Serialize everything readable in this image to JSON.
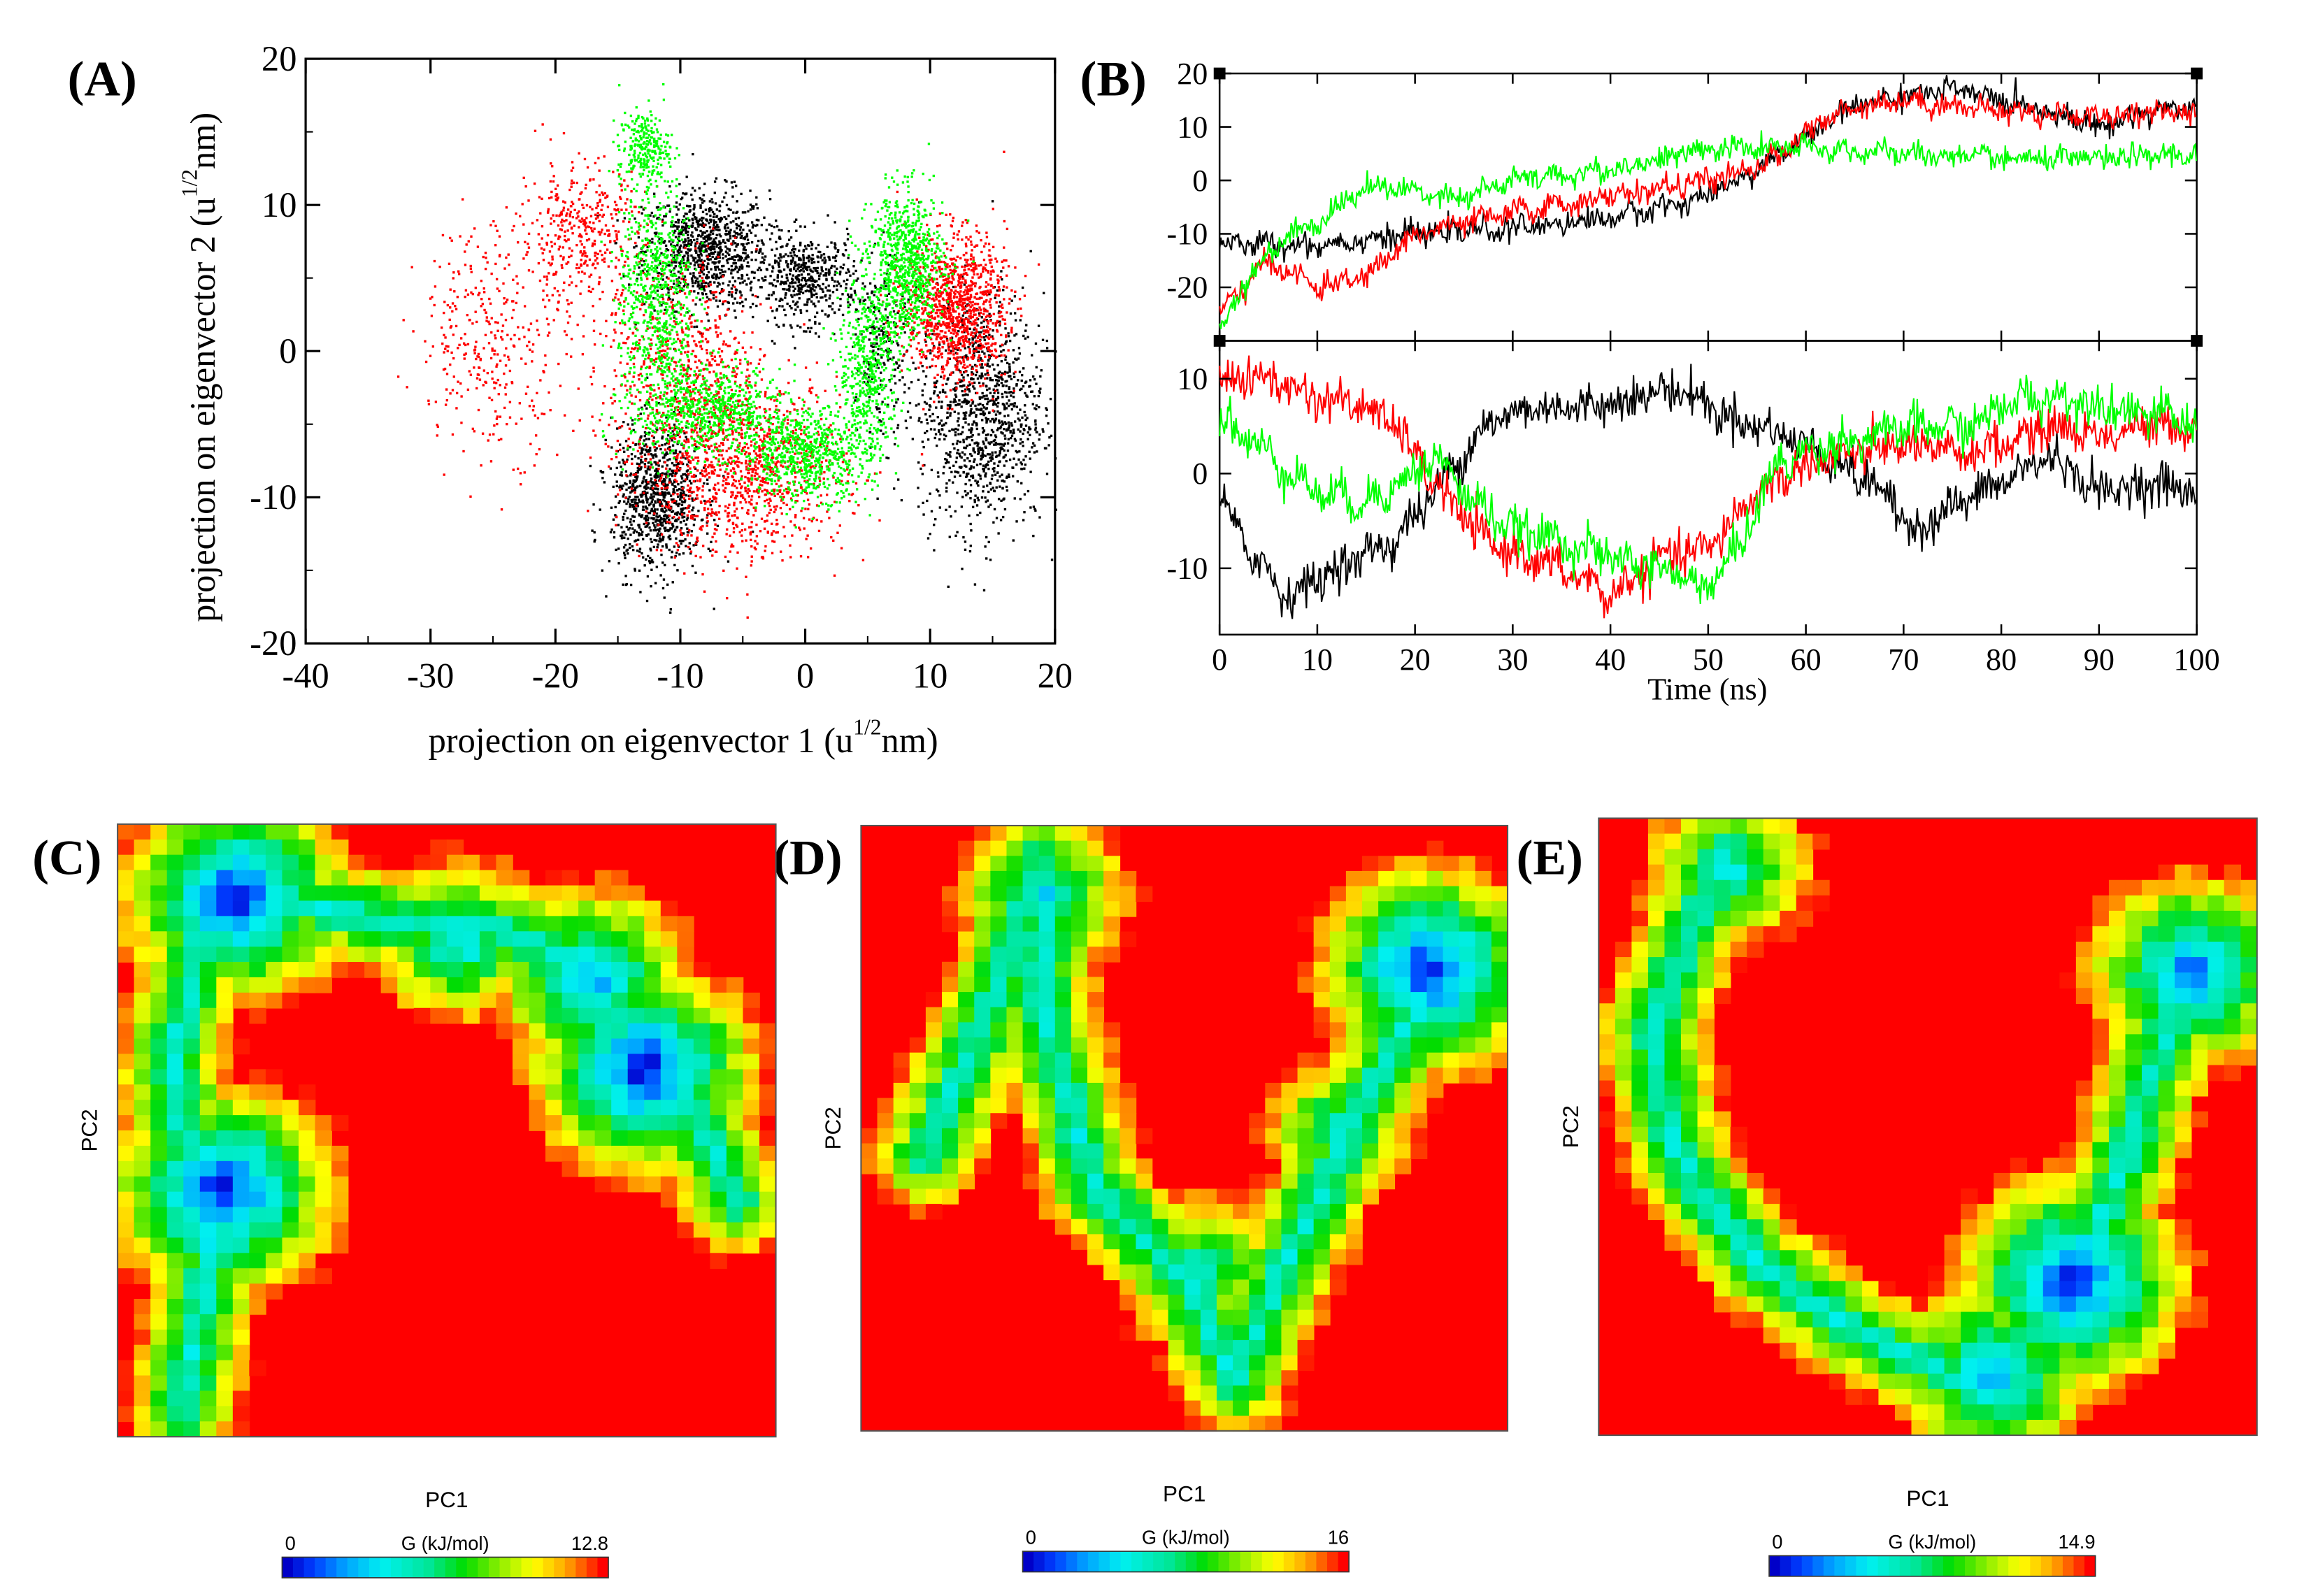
{
  "chart_data": [
    {
      "panel": "(A)",
      "type": "scatter",
      "xlabel": "projection on eigenvector 1 (u",
      "xlabel_sup": "1/2",
      "xlabel_end": "nm)",
      "ylabel": "projection on eigenvector 2 (u",
      "ylabel_sup": "1/2",
      "ylabel_end": "nm)",
      "xlim": [
        -40,
        20
      ],
      "ylim": [
        -20,
        20
      ],
      "xticks": [
        "-40",
        "-30",
        "-20",
        "-10",
        "0",
        "10",
        "20"
      ],
      "yticks": [
        "-20",
        "-10",
        "0",
        "10",
        "20"
      ],
      "series": [
        {
          "name": "black",
          "color": "#000000",
          "clusters": [
            {
              "cx": -8,
              "cy": 7,
              "sx": 2.5,
              "sy": 2,
              "n": 900
            },
            {
              "cx": 0,
              "cy": 5,
              "sx": 2,
              "sy": 1.5,
              "n": 500
            },
            {
              "cx": 14,
              "cy": -4,
              "sx": 2.5,
              "sy": 4,
              "n": 1100
            },
            {
              "cx": -12,
              "cy": -10,
              "sx": 1.8,
              "sy": 2.5,
              "n": 900
            },
            {
              "cx": 6,
              "cy": 0,
              "sx": 1,
              "sy": 3,
              "n": 200
            }
          ]
        },
        {
          "name": "red",
          "color": "#ff0000",
          "clusters": [
            {
              "cx": -25,
              "cy": 1,
              "sx": 3,
              "sy": 4,
              "n": 350
            },
            {
              "cx": -18,
              "cy": 8,
              "sx": 2.5,
              "sy": 2.5,
              "n": 400
            },
            {
              "cx": -5,
              "cy": -8,
              "sx": 4,
              "sy": 3,
              "n": 1100
            },
            {
              "cx": 12,
              "cy": 3,
              "sx": 2,
              "sy": 2.5,
              "n": 1100
            },
            {
              "cx": -10,
              "cy": -1,
              "sx": 3,
              "sy": 4,
              "n": 600
            }
          ]
        },
        {
          "name": "green",
          "color": "#00ff00",
          "clusters": [
            {
              "cx": -13,
              "cy": 14,
              "sx": 1,
              "sy": 1.2,
              "n": 250
            },
            {
              "cx": -12,
              "cy": 4,
              "sx": 1.5,
              "sy": 4,
              "n": 700
            },
            {
              "cx": -8,
              "cy": -4,
              "sx": 3,
              "sy": 1.5,
              "n": 700
            },
            {
              "cx": 0,
              "cy": -7,
              "sx": 2.5,
              "sy": 1.5,
              "n": 700
            },
            {
              "cx": 5,
              "cy": -1,
              "sx": 1.2,
              "sy": 3,
              "n": 500
            },
            {
              "cx": 8,
              "cy": 6,
              "sx": 1.5,
              "sy": 2.5,
              "n": 800
            }
          ]
        }
      ]
    },
    {
      "panel": "(B)",
      "type": "line",
      "xlabel": "Time (ns)",
      "xlim": [
        0,
        100
      ],
      "xticks": [
        "0",
        "10",
        "20",
        "30",
        "40",
        "50",
        "60",
        "70",
        "80",
        "90",
        "100"
      ],
      "top": {
        "ylim": [
          -30,
          20
        ],
        "yticks": [
          "20",
          "10",
          "0",
          "-10",
          "-20"
        ],
        "series": [
          {
            "name": "black",
            "color": "#000000",
            "points": [
              [
                0,
                -12
              ],
              [
                10,
                -12
              ],
              [
                20,
                -10
              ],
              [
                30,
                -9
              ],
              [
                40,
                -7
              ],
              [
                50,
                -3
              ],
              [
                55,
                2
              ],
              [
                60,
                8
              ],
              [
                65,
                14
              ],
              [
                70,
                16
              ],
              [
                75,
                17
              ],
              [
                80,
                15
              ],
              [
                85,
                13
              ],
              [
                90,
                10
              ],
              [
                95,
                13
              ],
              [
                100,
                14
              ]
            ]
          },
          {
            "name": "red",
            "color": "#ff0000",
            "points": [
              [
                0,
                -25
              ],
              [
                5,
                -15
              ],
              [
                10,
                -20
              ],
              [
                15,
                -18
              ],
              [
                20,
                -10
              ],
              [
                30,
                -6
              ],
              [
                40,
                -3
              ],
              [
                50,
                0
              ],
              [
                55,
                2
              ],
              [
                60,
                9
              ],
              [
                65,
                14
              ],
              [
                70,
                15
              ],
              [
                80,
                13
              ],
              [
                90,
                12
              ],
              [
                100,
                13
              ]
            ]
          },
          {
            "name": "green",
            "color": "#00ff00",
            "points": [
              [
                0,
                -28
              ],
              [
                3,
                -18
              ],
              [
                7,
                -10
              ],
              [
                10,
                -8
              ],
              [
                15,
                -1
              ],
              [
                25,
                -3
              ],
              [
                30,
                0
              ],
              [
                40,
                2
              ],
              [
                50,
                6
              ],
              [
                55,
                6
              ],
              [
                60,
                6
              ],
              [
                70,
                5
              ],
              [
                80,
                4
              ],
              [
                90,
                4
              ],
              [
                100,
                5
              ]
            ]
          }
        ]
      },
      "bottom": {
        "ylim": [
          -17,
          14
        ],
        "yticks": [
          "10",
          "0",
          "-10"
        ],
        "series": [
          {
            "name": "black",
            "color": "#000000",
            "points": [
              [
                0,
                -3
              ],
              [
                3,
                -8
              ],
              [
                7,
                -13
              ],
              [
                12,
                -10
              ],
              [
                18,
                -7
              ],
              [
                22,
                -2
              ],
              [
                27,
                5
              ],
              [
                32,
                7
              ],
              [
                37,
                7
              ],
              [
                42,
                8
              ],
              [
                47,
                9
              ],
              [
                52,
                6
              ],
              [
                58,
                4
              ],
              [
                62,
                2
              ],
              [
                68,
                -2
              ],
              [
                71,
                -6
              ],
              [
                76,
                -3
              ],
              [
                80,
                -1
              ],
              [
                85,
                2
              ],
              [
                90,
                -2
              ],
              [
                95,
                -1
              ],
              [
                100,
                -2
              ]
            ]
          },
          {
            "name": "red",
            "color": "#ff0000",
            "points": [
              [
                0,
                10
              ],
              [
                5,
                10
              ],
              [
                10,
                8
              ],
              [
                15,
                7
              ],
              [
                18,
                5
              ],
              [
                22,
                -1
              ],
              [
                27,
                -7
              ],
              [
                32,
                -9
              ],
              [
                37,
                -11
              ],
              [
                40,
                -13
              ],
              [
                45,
                -9
              ],
              [
                50,
                -8
              ],
              [
                55,
                -2
              ],
              [
                60,
                1
              ],
              [
                65,
                2
              ],
              [
                70,
                3
              ],
              [
                75,
                2
              ],
              [
                80,
                3
              ],
              [
                85,
                5
              ],
              [
                90,
                4
              ],
              [
                95,
                5
              ],
              [
                100,
                5
              ]
            ]
          },
          {
            "name": "green",
            "color": "#00ff00",
            "points": [
              [
                0,
                6
              ],
              [
                5,
                2
              ],
              [
                10,
                -2
              ],
              [
                15,
                -3
              ],
              [
                20,
                0
              ],
              [
                22,
                2
              ],
              [
                25,
                -2
              ],
              [
                30,
                -6
              ],
              [
                35,
                -7
              ],
              [
                40,
                -9
              ],
              [
                45,
                -10
              ],
              [
                50,
                -12
              ],
              [
                53,
                -8
              ],
              [
                57,
                1
              ],
              [
                62,
                3
              ],
              [
                67,
                4
              ],
              [
                72,
                5
              ],
              [
                77,
                5
              ],
              [
                82,
                8
              ],
              [
                87,
                8
              ],
              [
                92,
                7
              ],
              [
                97,
                6
              ],
              [
                100,
                5
              ]
            ]
          }
        ]
      }
    },
    {
      "panel": "(C)",
      "type": "heatmap",
      "xlabel": "PC1",
      "ylabel": "PC2",
      "colorbar_label": "G (kJ/mol)",
      "colorbar_min": "0",
      "colorbar_max": "12.8",
      "grid": [
        40,
        40
      ],
      "path": [
        [
          0.1,
          0.96
        ],
        [
          0.14,
          0.7
        ],
        [
          0.08,
          0.4
        ],
        [
          0.14,
          0.12
        ],
        [
          0.24,
          0.12
        ],
        [
          0.42,
          0.16
        ],
        [
          0.62,
          0.18
        ],
        [
          0.78,
          0.32
        ],
        [
          0.9,
          0.52
        ],
        [
          0.94,
          0.62
        ]
      ],
      "minima": [
        [
          0.18,
          0.12,
          0.0
        ],
        [
          0.16,
          0.6,
          0.0
        ],
        [
          0.8,
          0.4,
          0.0
        ],
        [
          0.72,
          0.25,
          0.15
        ],
        [
          0.52,
          0.19,
          0.25
        ]
      ]
    },
    {
      "panel": "(D)",
      "type": "heatmap",
      "xlabel": "PC1",
      "ylabel": "PC2",
      "colorbar_label": "G (kJ/mol)",
      "colorbar_min": "0",
      "colorbar_max": "16",
      "grid": [
        40,
        40
      ],
      "path": [
        [
          0.1,
          0.55
        ],
        [
          0.2,
          0.3
        ],
        [
          0.28,
          0.05
        ],
        [
          0.28,
          0.3
        ],
        [
          0.36,
          0.6
        ],
        [
          0.5,
          0.75
        ],
        [
          0.58,
          0.92
        ],
        [
          0.64,
          0.76
        ],
        [
          0.76,
          0.5
        ],
        [
          0.88,
          0.25
        ]
      ],
      "minima": [
        [
          0.88,
          0.24,
          0.0
        ],
        [
          0.28,
          0.12,
          0.25
        ],
        [
          0.52,
          0.74,
          0.3
        ],
        [
          0.74,
          0.5,
          0.35
        ]
      ]
    },
    {
      "panel": "(E)",
      "type": "heatmap",
      "xlabel": "PC1",
      "ylabel": "PC2",
      "colorbar_label": "G (kJ/mol)",
      "colorbar_min": "0",
      "colorbar_max": "14.9",
      "grid": [
        40,
        40
      ],
      "path": [
        [
          0.2,
          0.05
        ],
        [
          0.14,
          0.18
        ],
        [
          0.08,
          0.35
        ],
        [
          0.12,
          0.55
        ],
        [
          0.24,
          0.72
        ],
        [
          0.4,
          0.84
        ],
        [
          0.58,
          0.92
        ],
        [
          0.72,
          0.76
        ],
        [
          0.8,
          0.55
        ],
        [
          0.86,
          0.35
        ],
        [
          0.9,
          0.22
        ]
      ],
      "minima": [
        [
          0.72,
          0.75,
          0.0
        ],
        [
          0.9,
          0.25,
          0.1
        ],
        [
          0.6,
          0.9,
          0.15
        ],
        [
          0.2,
          0.08,
          0.3
        ]
      ]
    }
  ]
}
